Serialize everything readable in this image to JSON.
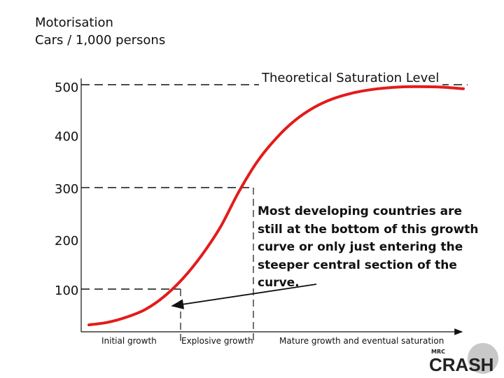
{
  "chart_data": {
    "type": "line",
    "title": "Motorisation",
    "ylabel": "Cars / 1,000 persons",
    "y_ticks": [
      "500",
      "400",
      "300",
      "200",
      "100"
    ],
    "ylim": [
      0,
      500
    ],
    "reference_line": {
      "value": 500,
      "label": "Theoretical Saturation Level"
    },
    "phases": [
      "Initial growth",
      "Explosive growth",
      "Mature growth and eventual saturation"
    ],
    "annotation": [
      "Most developing countries are",
      "still at the bottom of this growth",
      "curve or only just entering the",
      "steeper central section of the",
      "curve."
    ],
    "series": [
      {
        "color": "#e31b1b",
        "x": [
          0,
          0.05,
          0.1,
          0.15,
          0.2,
          0.25,
          0.3,
          0.35,
          0.4,
          0.45,
          0.5,
          0.55,
          0.6,
          0.65,
          0.7,
          0.75,
          0.8,
          0.85,
          0.9,
          0.95,
          1.0
        ],
        "y": [
          30,
          35,
          45,
          60,
          85,
          120,
          165,
          220,
          290,
          350,
          395,
          430,
          455,
          472,
          483,
          490,
          494,
          496,
          496,
          495,
          492
        ]
      }
    ],
    "grid": false
  },
  "logo": {
    "small": "MRC",
    "text": "CRASH",
    "accent": "#d3242b"
  }
}
